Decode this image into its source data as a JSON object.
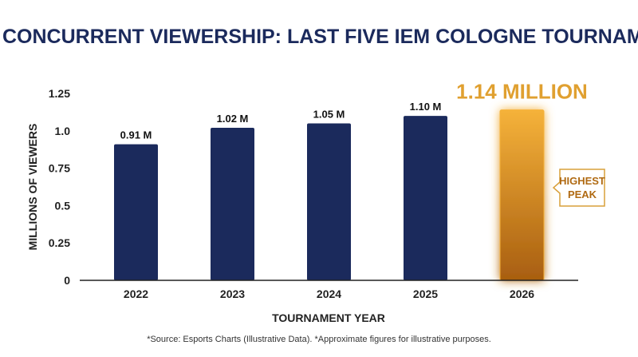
{
  "chart_data": {
    "type": "bar",
    "title": "PEAK CONCURRENT VIEWERSHIP: LAST FIVE IEM COLOGNE TOURNAMENTS",
    "xlabel": "TOURNAMENT YEAR",
    "ylabel": "MILLIONS OF VIEWERS",
    "categories": [
      "2022",
      "2023",
      "2024",
      "2025",
      "2026"
    ],
    "values": [
      0.91,
      1.02,
      1.05,
      1.1,
      1.14
    ],
    "data_labels": [
      "0.91 M",
      "1.02 M",
      "1.05 M",
      "1.10 M",
      "1.14 MILLION"
    ],
    "ylim": [
      0,
      1.25
    ],
    "yticks": [
      0,
      0.25,
      0.5,
      0.75,
      1.0,
      1.25
    ],
    "ytick_labels": [
      "0",
      "0.25",
      "0.5",
      "0.75",
      "1.0",
      "1.25"
    ],
    "grid": false,
    "legend": "none",
    "highlight_index": 4,
    "annotation": {
      "line1": "HIGHEST",
      "line2": "PEAK"
    },
    "colors": {
      "bar": "#1b2a5c",
      "highlight_top": "#f5b23a",
      "highlight_bottom": "#a85e10",
      "highlight_label": "#e0a030",
      "title": "#1b2a5c",
      "axis": "#222222",
      "annotation_border": "#d9a03a",
      "annotation_text": "#b06a12"
    }
  },
  "footnote": "*Source: Esports Charts (Illustrative Data). *Approximate figures for illustrative purposes."
}
